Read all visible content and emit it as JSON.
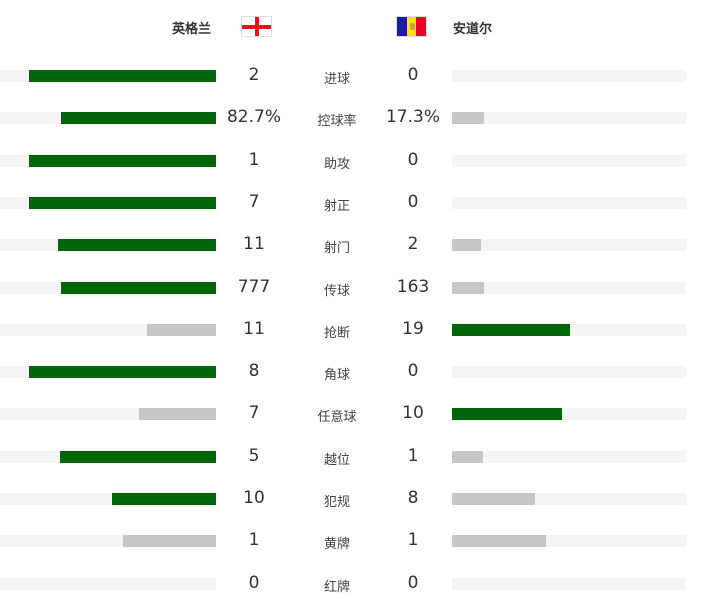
{
  "home": {
    "name": "英格兰",
    "flag": "england-flag-icon"
  },
  "away": {
    "name": "安道尔",
    "flag": "andorra-flag-icon"
  },
  "colors": {
    "leader": "#006409",
    "other": "#c6c6c6",
    "track": "#f5f5f5"
  },
  "stats": [
    {
      "label": "进球",
      "home": "2",
      "away": "0",
      "h": 2,
      "a": 0
    },
    {
      "label": "控球率",
      "home": "82.7%",
      "away": "17.3%",
      "h": 82.7,
      "a": 17.3
    },
    {
      "label": "助攻",
      "home": "1",
      "away": "0",
      "h": 1,
      "a": 0
    },
    {
      "label": "射正",
      "home": "7",
      "away": "0",
      "h": 7,
      "a": 0
    },
    {
      "label": "射门",
      "home": "11",
      "away": "2",
      "h": 11,
      "a": 2
    },
    {
      "label": "传球",
      "home": "777",
      "away": "163",
      "h": 777,
      "a": 163
    },
    {
      "label": "抢断",
      "home": "11",
      "away": "19",
      "h": 11,
      "a": 19
    },
    {
      "label": "角球",
      "home": "8",
      "away": "0",
      "h": 8,
      "a": 0
    },
    {
      "label": "任意球",
      "home": "7",
      "away": "10",
      "h": 7,
      "a": 10
    },
    {
      "label": "越位",
      "home": "5",
      "away": "1",
      "h": 5,
      "a": 1
    },
    {
      "label": "犯规",
      "home": "10",
      "away": "8",
      "h": 10,
      "a": 8
    },
    {
      "label": "黄牌",
      "home": "1",
      "away": "1",
      "h": 1,
      "a": 1
    },
    {
      "label": "红牌",
      "home": "0",
      "away": "0",
      "h": 0,
      "a": 0
    }
  ]
}
